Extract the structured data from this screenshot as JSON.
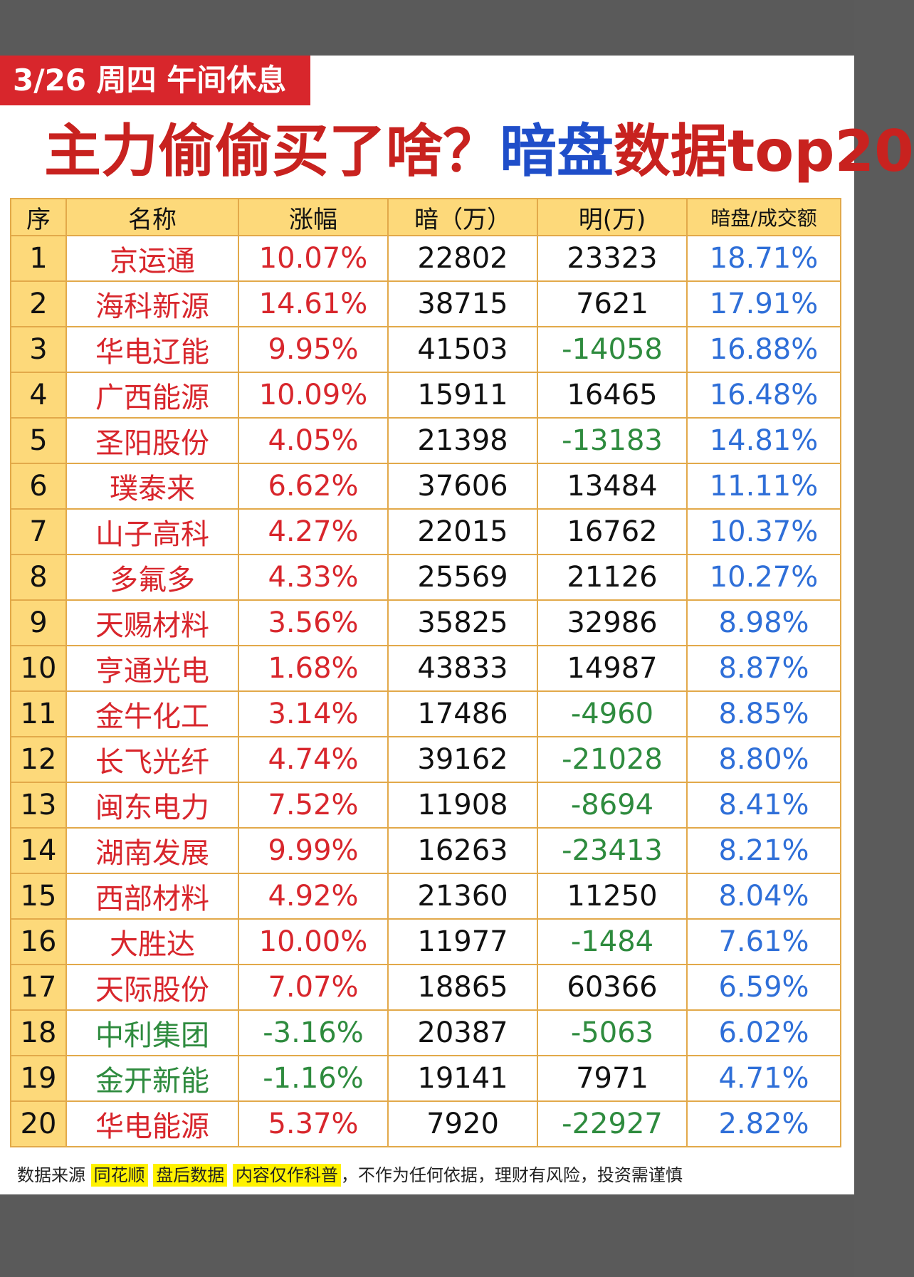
{
  "header": {
    "date_tag": "3/26 周四  午间休息",
    "title_part1": "主力偷偷买了啥？",
    "title_part2": "暗盘",
    "title_part3": "数据top20"
  },
  "table": {
    "columns": [
      "序",
      "名称",
      "涨幅",
      "暗（万）",
      "明(万)",
      "暗盘/成交额"
    ],
    "rows": [
      {
        "idx": "1",
        "name": "京运通",
        "pct": "10.07%",
        "dark": "22802",
        "lit": "23323",
        "ratio": "18.71%",
        "dir": "up",
        "lit_neg": false
      },
      {
        "idx": "2",
        "name": "海科新源",
        "pct": "14.61%",
        "dark": "38715",
        "lit": "7621",
        "ratio": "17.91%",
        "dir": "up",
        "lit_neg": false
      },
      {
        "idx": "3",
        "name": "华电辽能",
        "pct": "9.95%",
        "dark": "41503",
        "lit": "-14058",
        "ratio": "16.88%",
        "dir": "up",
        "lit_neg": true
      },
      {
        "idx": "4",
        "name": "广西能源",
        "pct": "10.09%",
        "dark": "15911",
        "lit": "16465",
        "ratio": "16.48%",
        "dir": "up",
        "lit_neg": false
      },
      {
        "idx": "5",
        "name": "圣阳股份",
        "pct": "4.05%",
        "dark": "21398",
        "lit": "-13183",
        "ratio": "14.81%",
        "dir": "up",
        "lit_neg": true
      },
      {
        "idx": "6",
        "name": "璞泰来",
        "pct": "6.62%",
        "dark": "37606",
        "lit": "13484",
        "ratio": "11.11%",
        "dir": "up",
        "lit_neg": false
      },
      {
        "idx": "7",
        "name": "山子高科",
        "pct": "4.27%",
        "dark": "22015",
        "lit": "16762",
        "ratio": "10.37%",
        "dir": "up",
        "lit_neg": false
      },
      {
        "idx": "8",
        "name": "多氟多",
        "pct": "4.33%",
        "dark": "25569",
        "lit": "21126",
        "ratio": "10.27%",
        "dir": "up",
        "lit_neg": false
      },
      {
        "idx": "9",
        "name": "天赐材料",
        "pct": "3.56%",
        "dark": "35825",
        "lit": "32986",
        "ratio": "8.98%",
        "dir": "up",
        "lit_neg": false
      },
      {
        "idx": "10",
        "name": "亨通光电",
        "pct": "1.68%",
        "dark": "43833",
        "lit": "14987",
        "ratio": "8.87%",
        "dir": "up",
        "lit_neg": false
      },
      {
        "idx": "11",
        "name": "金牛化工",
        "pct": "3.14%",
        "dark": "17486",
        "lit": "-4960",
        "ratio": "8.85%",
        "dir": "up",
        "lit_neg": true
      },
      {
        "idx": "12",
        "name": "长飞光纤",
        "pct": "4.74%",
        "dark": "39162",
        "lit": "-21028",
        "ratio": "8.80%",
        "dir": "up",
        "lit_neg": true
      },
      {
        "idx": "13",
        "name": "闽东电力",
        "pct": "7.52%",
        "dark": "11908",
        "lit": "-8694",
        "ratio": "8.41%",
        "dir": "up",
        "lit_neg": true
      },
      {
        "idx": "14",
        "name": "湖南发展",
        "pct": "9.99%",
        "dark": "16263",
        "lit": "-23413",
        "ratio": "8.21%",
        "dir": "up",
        "lit_neg": true
      },
      {
        "idx": "15",
        "name": "西部材料",
        "pct": "4.92%",
        "dark": "21360",
        "lit": "11250",
        "ratio": "8.04%",
        "dir": "up",
        "lit_neg": false
      },
      {
        "idx": "16",
        "name": "大胜达",
        "pct": "10.00%",
        "dark": "11977",
        "lit": "-1484",
        "ratio": "7.61%",
        "dir": "up",
        "lit_neg": true
      },
      {
        "idx": "17",
        "name": "天际股份",
        "pct": "7.07%",
        "dark": "18865",
        "lit": "60366",
        "ratio": "6.59%",
        "dir": "up",
        "lit_neg": false
      },
      {
        "idx": "18",
        "name": "中利集团",
        "pct": "-3.16%",
        "dark": "20387",
        "lit": "-5063",
        "ratio": "6.02%",
        "dir": "down",
        "lit_neg": true
      },
      {
        "idx": "19",
        "name": "金开新能",
        "pct": "-1.16%",
        "dark": "19141",
        "lit": "7971",
        "ratio": "4.71%",
        "dir": "down",
        "lit_neg": false
      },
      {
        "idx": "20",
        "name": "华电能源",
        "pct": "5.37%",
        "dark": "7920",
        "lit": "-22927",
        "ratio": "2.82%",
        "dir": "up",
        "lit_neg": true
      }
    ]
  },
  "footer": {
    "prefix": "数据来源",
    "source": "同花顺",
    "after_hours": "盘后数据",
    "science": "内容仅作科普",
    "disclaimer": "，不作为任何依据，理财有风险，投资需谨慎"
  },
  "colors": {
    "red": "#d8262c",
    "green": "#2e8b3e",
    "blue": "#2f6fd8",
    "header_bg": "#fdd97a",
    "border": "#e2a94a"
  }
}
